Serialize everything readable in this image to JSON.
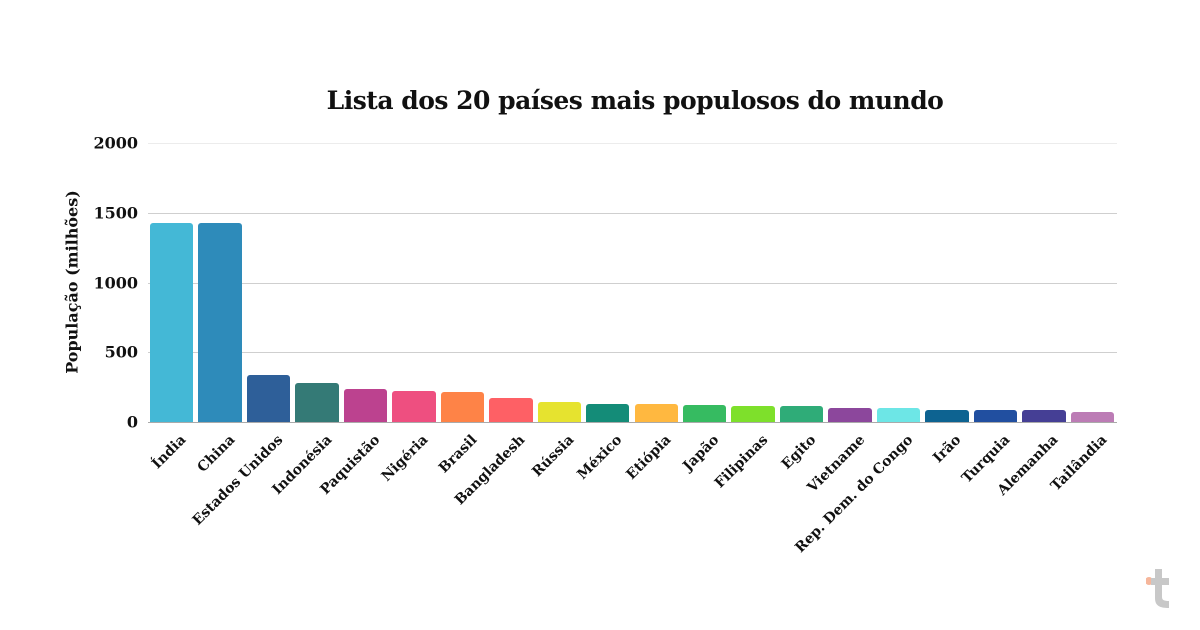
{
  "chart_data": {
    "type": "bar",
    "title": "Lista dos 20 países mais populosos do mundo",
    "xlabel": "",
    "ylabel": "População (milhões)",
    "ylim": [
      0,
      2000
    ],
    "yticks": [
      0,
      500,
      1000,
      1500,
      2000
    ],
    "grid": true,
    "legend": "none",
    "categories": [
      "Índia",
      "China",
      "Estados Unidos",
      "Indonésia",
      "Paquistão",
      "Nigéria",
      "Brasil",
      "Bangladesh",
      "Rússia",
      "México",
      "Etiópia",
      "Japão",
      "Filipinas",
      "Egito",
      "Vietname",
      "Rep. Dem. do Congo",
      "Irão",
      "Turquia",
      "Alemanha",
      "Tailândia"
    ],
    "values": [
      1428,
      1425,
      340,
      277,
      240,
      224,
      216,
      173,
      144,
      128,
      127,
      123,
      117,
      113,
      99,
      102,
      89,
      86,
      83,
      72
    ],
    "colors": [
      "#44b8d6",
      "#2e8bba",
      "#2e5f99",
      "#347a76",
      "#bc428f",
      "#ee4f80",
      "#fe8347",
      "#fe6065",
      "#e6e32f",
      "#148c78",
      "#ffb840",
      "#36bb61",
      "#7ee02b",
      "#2fac78",
      "#8c479c",
      "#6de6e6",
      "#0d6391",
      "#214fa0",
      "#453f95",
      "#bc7cb5"
    ]
  },
  "logo": {
    "glyph": "t",
    "accent": "#f6b69b",
    "color": "#c8c8c8"
  }
}
